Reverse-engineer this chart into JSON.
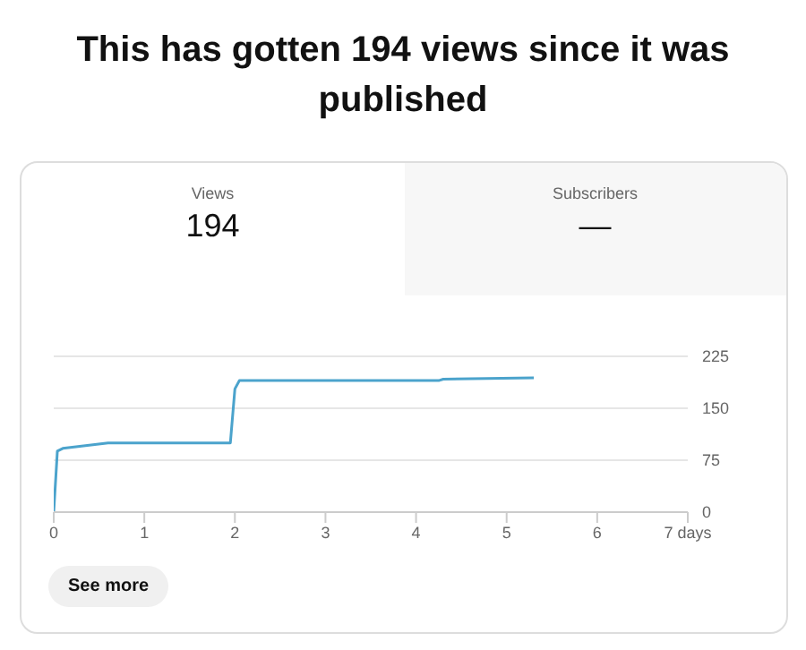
{
  "chart_data": {
    "type": "line",
    "title": "This has gotten 194 views since it was published",
    "x": [
      0,
      0.04,
      0.1,
      0.6,
      1.95,
      2.0,
      2.05,
      4.25,
      4.3,
      5.3
    ],
    "series": [
      {
        "color": "#4ba3cc",
        "values": [
          0,
          88,
          92,
          100,
          100,
          178,
          190,
          190,
          192,
          194
        ]
      }
    ],
    "xlim": [
      0,
      7
    ],
    "xticks": [
      0,
      1,
      2,
      3,
      4,
      5,
      6,
      {
        "value": 7,
        "label": "7 days"
      }
    ],
    "ylim": [
      0,
      225
    ],
    "yticks": [
      0,
      75,
      150,
      225
    ],
    "grid": "y",
    "marker": "none",
    "annotations": [
      "Views",
      "194",
      "Subscribers",
      "—",
      "See more"
    ]
  }
}
